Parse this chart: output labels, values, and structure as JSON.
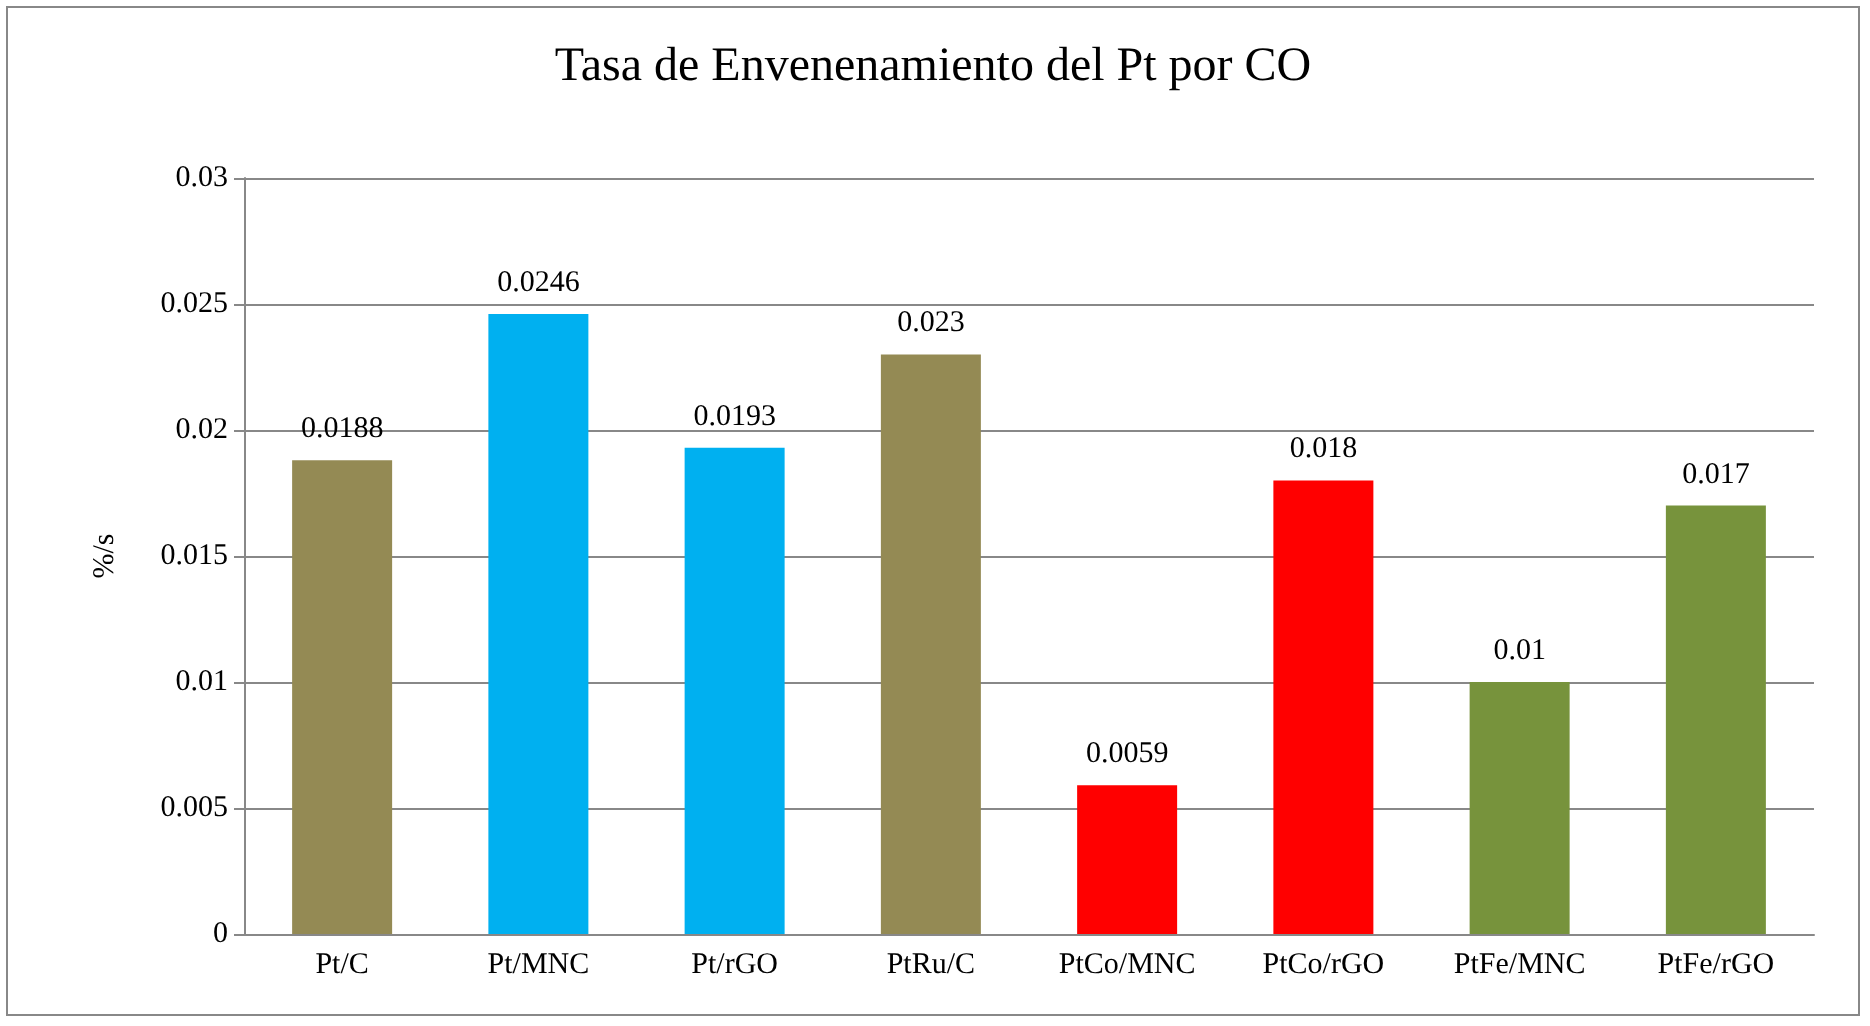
{
  "chart_data": {
    "type": "bar",
    "title": "Tasa de Envenenamiento del Pt por CO",
    "ylabel": "%/s",
    "categories": [
      "Pt/C",
      "Pt/MNC",
      "Pt/rGO",
      "PtRu/C",
      "PtCo/MNC",
      "PtCo/rGO",
      "PtFe/MNC",
      "PtFe/rGO"
    ],
    "values": [
      0.0188,
      0.0246,
      0.0193,
      0.023,
      0.0059,
      0.018,
      0.01,
      0.017
    ],
    "colors": [
      "#948a54",
      "#00b0f0",
      "#00b0f0",
      "#948a54",
      "#ff0000",
      "#ff0000",
      "#77933c",
      "#77933c"
    ],
    "ylim": [
      0,
      0.03
    ],
    "yticks": [
      0,
      0.005,
      0.01,
      0.015,
      0.02,
      0.025,
      0.03
    ],
    "grid": "y",
    "data_labels": true
  }
}
